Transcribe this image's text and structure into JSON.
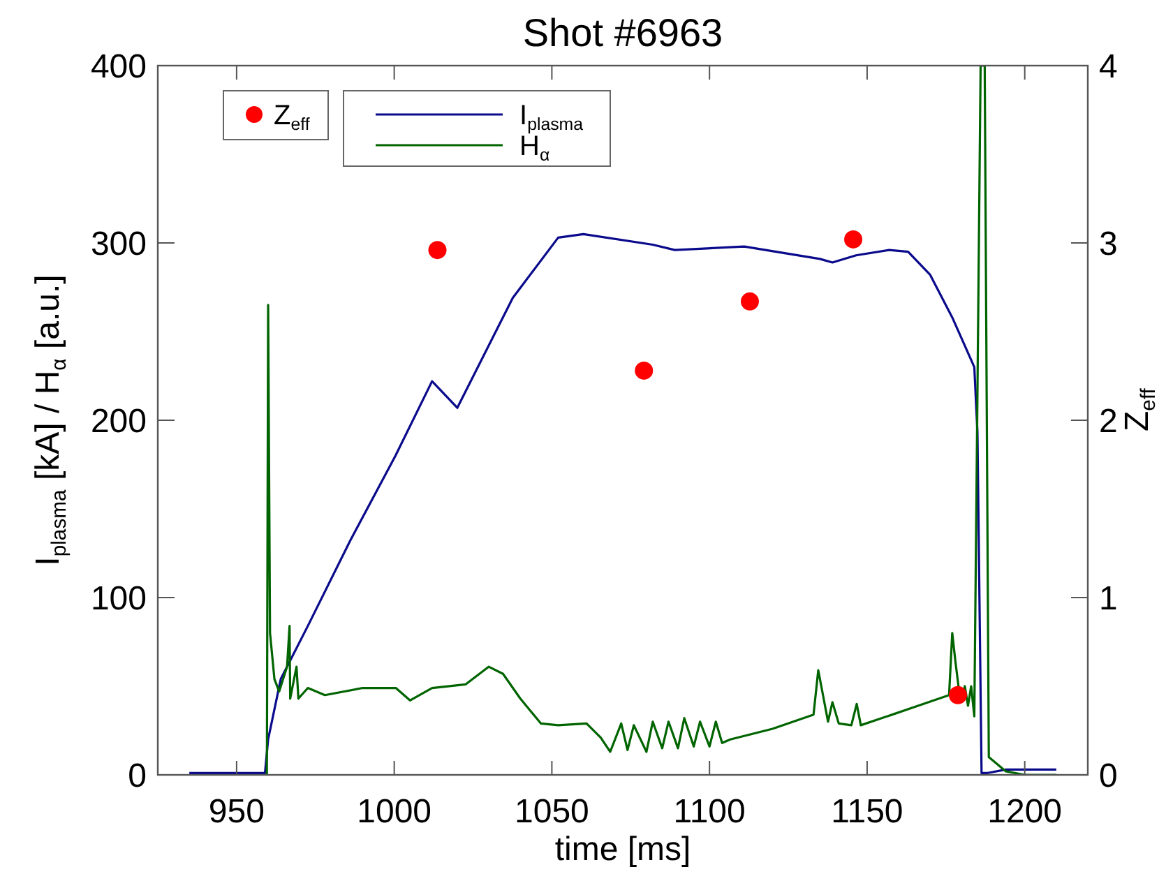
{
  "chart_data": {
    "type": "line",
    "title": "Shot #6963",
    "xlabel": "time [ms]",
    "ylabel": "I$_{plasma}$ [kA] / H$_{α}$ [a.u.]",
    "y2label": "Z$_{eff}$",
    "xlim": [
      925,
      1220
    ],
    "xticks": [
      950,
      1000,
      1050,
      1100,
      1150,
      1200
    ],
    "ylim": [
      0,
      400
    ],
    "yticks": [
      0,
      100,
      200,
      300,
      400
    ],
    "y2lim": [
      0,
      4
    ],
    "y2ticks": [
      0,
      1,
      2,
      3,
      4
    ],
    "legend": "top left",
    "grid": false,
    "series": [
      {
        "name": "I$_{plasma}$",
        "color": "#0a0a8c",
        "marker": "none",
        "line_style": "solid",
        "x": [
          935,
          959,
          960,
          964,
          972.6,
          986,
          1000.4,
          1012,
          1020,
          1037.6,
          1052,
          1060,
          1082,
          1089,
          1111,
          1135,
          1139,
          1146.5,
          1157,
          1163,
          1170,
          1177,
          1184,
          1185,
          1186.3,
          1188,
          1194,
          1210
        ],
        "values": [
          1,
          1,
          20,
          54,
          84,
          132,
          180,
          222,
          207,
          269,
          303,
          305,
          299,
          296,
          298,
          291,
          289,
          293,
          296,
          295,
          282,
          258,
          230,
          193,
          1,
          1,
          3,
          3
        ]
      },
      {
        "name": "H$_{α}$",
        "color": "#006400",
        "marker": "none",
        "line_style": "solid",
        "x": [
          959,
          959.6,
          960,
          960.6,
          962,
          963.5,
          966,
          966.8,
          967,
          969,
          969.6,
          972.6,
          978,
          990,
          1000.5,
          1005,
          1012,
          1022.6,
          1030,
          1034.5,
          1040,
          1046.5,
          1052,
          1061,
          1065.5,
          1068.5,
          1072,
          1074,
          1076,
          1080,
          1082,
          1085,
          1087,
          1090,
          1092,
          1095,
          1097,
          1100,
          1102,
          1104,
          1106.6,
          1120,
          1133,
          1134.5,
          1136,
          1137.6,
          1139,
          1141,
          1145,
          1146.7,
          1148,
          1158,
          1176,
          1177,
          1178,
          1179.6,
          1181,
          1182,
          1183,
          1184,
          1186,
          1187.3,
          1188.6,
          1194,
          1200,
          1210
        ],
        "values": [
          0,
          0,
          265,
          80,
          54,
          47,
          61,
          84,
          43,
          61,
          43,
          49,
          45,
          49,
          49,
          42,
          49,
          51,
          61,
          57,
          43,
          29,
          28,
          29,
          21,
          13,
          29,
          14,
          28,
          13,
          30,
          15,
          30,
          15,
          32,
          16,
          30,
          16,
          30,
          18,
          20,
          26,
          34,
          59,
          45,
          30,
          41,
          29,
          28,
          40,
          28,
          34,
          45,
          80,
          64,
          41,
          50,
          39,
          50,
          33,
          400,
          400,
          10,
          2,
          0,
          0
        ]
      },
      {
        "name": "Z$_{eff}$",
        "color": "#ff0000",
        "type": "scatter",
        "axis": "y2",
        "marker": "circle",
        "x": [
          1013.7,
          1079.2,
          1112.8,
          1145.6,
          1178.8
        ],
        "values": [
          2.96,
          2.28,
          2.67,
          3.02,
          0.45
        ]
      }
    ]
  }
}
